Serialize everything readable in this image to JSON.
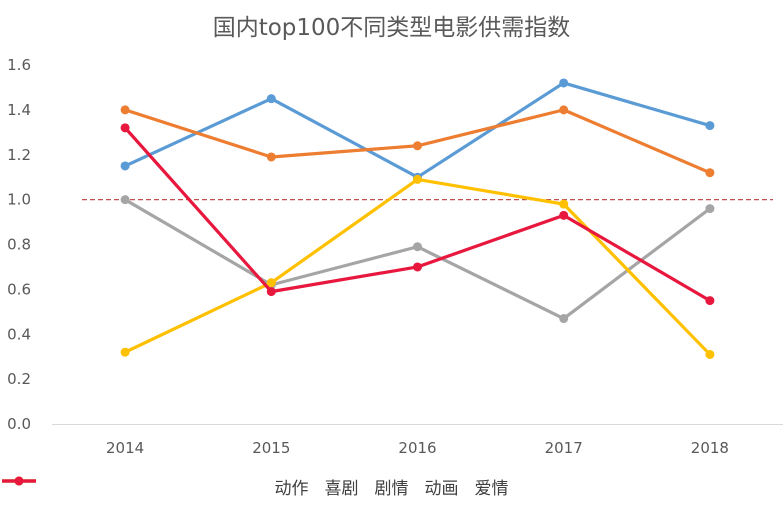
{
  "chart_data": {
    "type": "line",
    "title": "国内top100不同类型电影供需指数",
    "categories": [
      "2014",
      "2015",
      "2016",
      "2017",
      "2018"
    ],
    "yticks": [
      "0.0",
      "0.2",
      "0.4",
      "0.6",
      "0.8",
      "1.0",
      "1.2",
      "1.4",
      "1.6"
    ],
    "ylim": [
      0,
      1.6
    ],
    "grid": false,
    "reference_line": {
      "value": 1.0,
      "style": "dashed",
      "color": "#C0504D"
    },
    "legend_position": "bottom",
    "series": [
      {
        "name": "动作",
        "color": "#5B9BD5",
        "values": [
          1.15,
          1.45,
          1.1,
          1.52,
          1.33
        ]
      },
      {
        "name": "喜剧",
        "color": "#ED7D31",
        "values": [
          1.4,
          1.19,
          1.24,
          1.4,
          1.12
        ]
      },
      {
        "name": "剧情",
        "color": "#A5A5A5",
        "values": [
          1.0,
          0.62,
          0.79,
          0.47,
          0.96
        ]
      },
      {
        "name": "动画",
        "color": "#FFC000",
        "values": [
          0.32,
          0.63,
          1.09,
          0.98,
          0.31
        ]
      },
      {
        "name": "爱情",
        "color": "#E8173E",
        "values": [
          1.32,
          0.59,
          0.7,
          0.93,
          0.55
        ]
      }
    ]
  }
}
